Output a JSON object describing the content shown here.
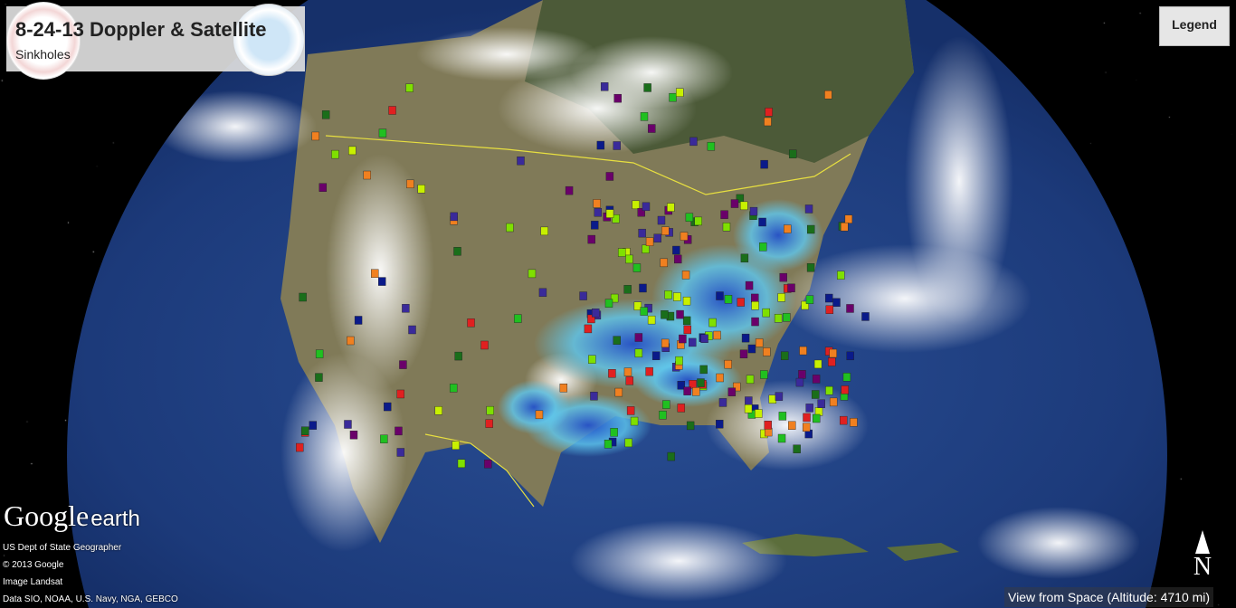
{
  "header": {
    "title": "8-24-13 Doppler & Satellite",
    "subtitle": "Sinkholes"
  },
  "legend_button": {
    "label": "Legend"
  },
  "logo": {
    "google": "Google",
    "earth": "earth"
  },
  "credits": [
    "US Dept of State Geographer",
    "© 2013 Google",
    "Image Landsat",
    "Data SIO, NOAA, U.S. Navy, NGA, GEBCO"
  ],
  "compass": {
    "label": "N"
  },
  "status": {
    "altitude": "View from Space (Altitude: 4710 mi)"
  },
  "colors": {
    "ocean": "#1c3a7a",
    "land": "#8a8560",
    "radar_light": "#5ec8f0",
    "radar_dark": "#1f4fd0",
    "border": "#e8e040"
  },
  "marker_colors": [
    "#7fe000",
    "#c8f000",
    "#1a6e1a",
    "#3a2a9a",
    "#6a006a",
    "#0a1a8a",
    "#e02020",
    "#f08020",
    "#20c020"
  ]
}
